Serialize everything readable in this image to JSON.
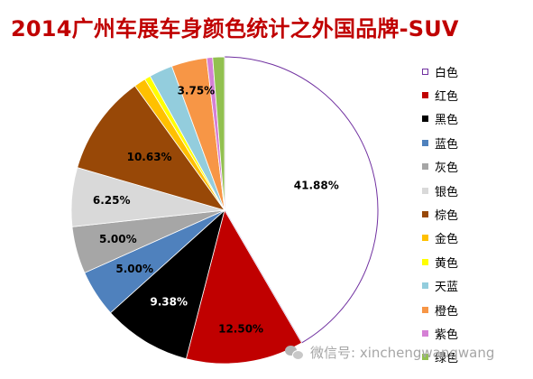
{
  "chart_data": {
    "type": "pie",
    "title": "2014广州车展车身颜色统计之外国品牌-SUV",
    "slices": [
      {
        "name": "白色",
        "value": 41.88,
        "label": "41.88%",
        "color": "#ffffff"
      },
      {
        "name": "红色",
        "value": 12.5,
        "label": "12.50%",
        "color": "#c00000"
      },
      {
        "name": "黑色",
        "value": 9.38,
        "label": "9.38%",
        "color": "#000000"
      },
      {
        "name": "蓝色",
        "value": 5.0,
        "label": "5.00%",
        "color": "#4f81bd"
      },
      {
        "name": "灰色",
        "value": 5.0,
        "label": "5.00%",
        "color": "#a6a6a6"
      },
      {
        "name": "银色",
        "value": 6.25,
        "label": "6.25%",
        "color": "#d9d9d9"
      },
      {
        "name": "棕色",
        "value": 10.63,
        "label": "10.63%",
        "color": "#984807"
      },
      {
        "name": "金色",
        "value": 1.25,
        "label": "",
        "color": "#ffc000"
      },
      {
        "name": "黄色",
        "value": 0.63,
        "label": "",
        "color": "#ffff00"
      },
      {
        "name": "天蓝",
        "value": 2.5,
        "label": "",
        "color": "#93cddd"
      },
      {
        "name": "橙色",
        "value": 3.75,
        "label": "3.75%",
        "color": "#f79646"
      },
      {
        "name": "紫色",
        "value": 0.63,
        "label": "",
        "color": "#d580d5"
      },
      {
        "name": "绿色",
        "value": 1.25,
        "label": "",
        "color": "#92c050"
      }
    ],
    "legend_position": "right"
  },
  "watermark": {
    "text": "微信号: xinchengwangwang"
  }
}
